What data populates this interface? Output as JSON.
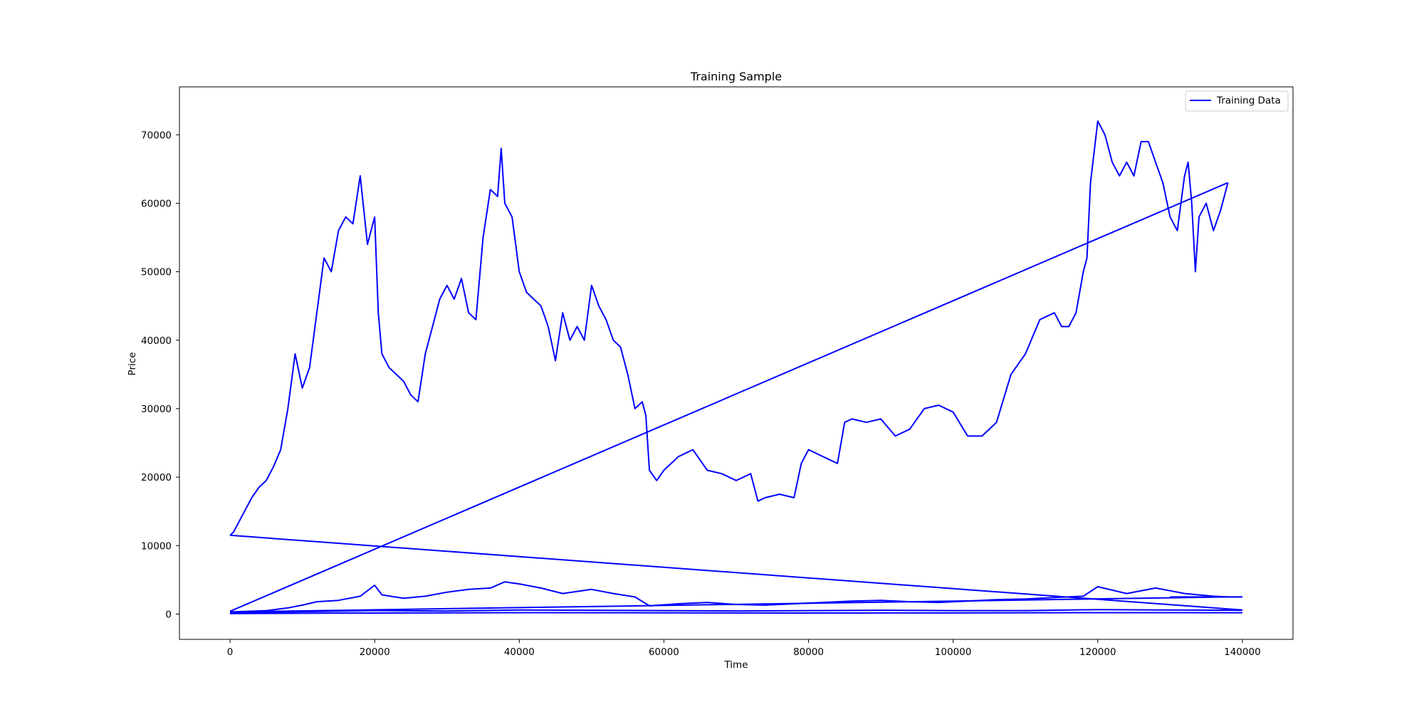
{
  "chart_data": {
    "type": "line",
    "title": "Training Sample",
    "xlabel": "Time",
    "ylabel": "Price",
    "xlim": [
      -7000,
      147000
    ],
    "ylim": [
      -3700,
      77000
    ],
    "xticks": [
      0,
      20000,
      40000,
      60000,
      80000,
      100000,
      120000,
      140000
    ],
    "yticks": [
      0,
      10000,
      20000,
      30000,
      40000,
      50000,
      60000,
      70000
    ],
    "grid": false,
    "legend_position": "top-right",
    "line_color": "#0000ff",
    "series": [
      {
        "name": "Training Data",
        "color": "#0000ff",
        "main_price": {
          "x": [
            0,
            500,
            1000,
            2000,
            3000,
            4000,
            5000,
            6000,
            7000,
            8000,
            9000,
            10000,
            11000,
            12000,
            13000,
            14000,
            15000,
            16000,
            17000,
            18000,
            19000,
            20000,
            20500,
            21000,
            22000,
            23000,
            24000,
            25000,
            26000,
            27000,
            28000,
            29000,
            30000,
            31000,
            32000,
            33000,
            34000,
            35000,
            36000,
            37000,
            37500,
            38000,
            39000,
            40000,
            41000,
            42000,
            43000,
            44000,
            45000,
            46000,
            47000,
            48000,
            49000,
            50000,
            51000,
            52000,
            53000,
            54000,
            55000,
            56000,
            57000,
            57500,
            58000,
            59000,
            60000,
            62000,
            64000,
            66000,
            68000,
            70000,
            72000,
            73000,
            74000,
            76000,
            78000,
            79000,
            80000,
            82000,
            84000,
            85000,
            86000,
            88000,
            90000,
            92000,
            94000,
            96000,
            98000,
            100000,
            102000,
            104000,
            106000,
            108000,
            110000,
            112000,
            114000,
            115000,
            116000,
            117000,
            118000,
            118500,
            119000,
            120000,
            121000,
            122000,
            123000,
            124000,
            125000,
            126000,
            127000,
            128000,
            129000,
            130000,
            131000,
            132000,
            132500,
            133000,
            133500,
            134000,
            135000,
            136000,
            137000,
            138000
          ],
          "y": [
            11500,
            12000,
            13000,
            15000,
            17000,
            18500,
            19500,
            21500,
            24000,
            30000,
            38000,
            33000,
            36000,
            44000,
            52000,
            50000,
            56000,
            58000,
            57000,
            64000,
            54000,
            58000,
            44000,
            38000,
            36000,
            35000,
            34000,
            32000,
            31000,
            38000,
            42000,
            46000,
            48000,
            46000,
            49000,
            44000,
            43000,
            55000,
            62000,
            61000,
            68000,
            60000,
            58000,
            50000,
            47000,
            46000,
            45000,
            42000,
            37000,
            44000,
            40000,
            42000,
            40000,
            48000,
            45000,
            43000,
            40000,
            39000,
            35000,
            30000,
            31000,
            29000,
            21000,
            19500,
            21000,
            23000,
            24000,
            21000,
            20500,
            19500,
            20500,
            16500,
            17000,
            17500,
            17000,
            22000,
            24000,
            23000,
            22000,
            28000,
            28500,
            28000,
            28500,
            26000,
            27000,
            30000,
            30500,
            29500,
            26000,
            26000,
            28000,
            35000,
            38000,
            43000,
            44000,
            42000,
            42000,
            44000,
            50000,
            52000,
            63000,
            72000,
            70000,
            66000,
            64000,
            66000,
            64000,
            69000,
            69000,
            66000,
            63000,
            58000,
            56000,
            64000,
            66000,
            60000,
            50000,
            58000,
            60000,
            56000,
            59000,
            63000
          ]
        },
        "connector_lines": [
          {
            "x": [
              138000,
              0
            ],
            "y": [
              63000,
              400
            ]
          },
          {
            "x": [
              0,
              140000
            ],
            "y": [
              11500,
              600
            ]
          },
          {
            "x": [
              130000,
              140000
            ],
            "y": [
              2500,
              2500
            ]
          },
          {
            "x": [
              0,
              138000
            ],
            "y": [
              300,
              2500
            ]
          }
        ],
        "low_series": [
          {
            "x": [
              0,
              5000,
              8000,
              10000,
              12000,
              15000,
              18000,
              20000,
              21000,
              24000,
              27000,
              30000,
              33000,
              36000,
              38000,
              40000,
              43000,
              46000,
              50000,
              53000,
              56000,
              58000,
              62000,
              66000,
              70000,
              74000,
              78000,
              82000,
              86000,
              90000,
              94000,
              98000,
              102000,
              106000,
              110000,
              114000,
              118000,
              120000,
              124000,
              128000,
              130000,
              132000,
              134000,
              136000,
              138000,
              140000
            ],
            "y": [
              300,
              500,
              900,
              1300,
              1800,
              2000,
              2600,
              4200,
              2800,
              2300,
              2600,
              3200,
              3600,
              3800,
              4700,
              4400,
              3800,
              3000,
              3600,
              3000,
              2500,
              1200,
              1500,
              1700,
              1400,
              1300,
              1500,
              1700,
              1900,
              2000,
              1800,
              1700,
              1900,
              2100,
              2200,
              2400,
              2600,
              4000,
              3000,
              3800,
              3400,
              3000,
              2800,
              2600,
              2500,
              2500
            ]
          },
          {
            "x": [
              0,
              10000,
              20000,
              30000,
              40000,
              50000,
              60000,
              70000,
              80000,
              90000,
              100000,
              110000,
              120000,
              130000,
              140000
            ],
            "y": [
              200,
              350,
              500,
              450,
              600,
              550,
              500,
              450,
              500,
              550,
              500,
              500,
              650,
              600,
              550
            ]
          },
          {
            "x": [
              0,
              20000,
              40000,
              60000,
              80000,
              100000,
              120000,
              140000
            ],
            "y": [
              80,
              150,
              200,
              180,
              150,
              160,
              200,
              190
            ]
          }
        ]
      }
    ]
  }
}
